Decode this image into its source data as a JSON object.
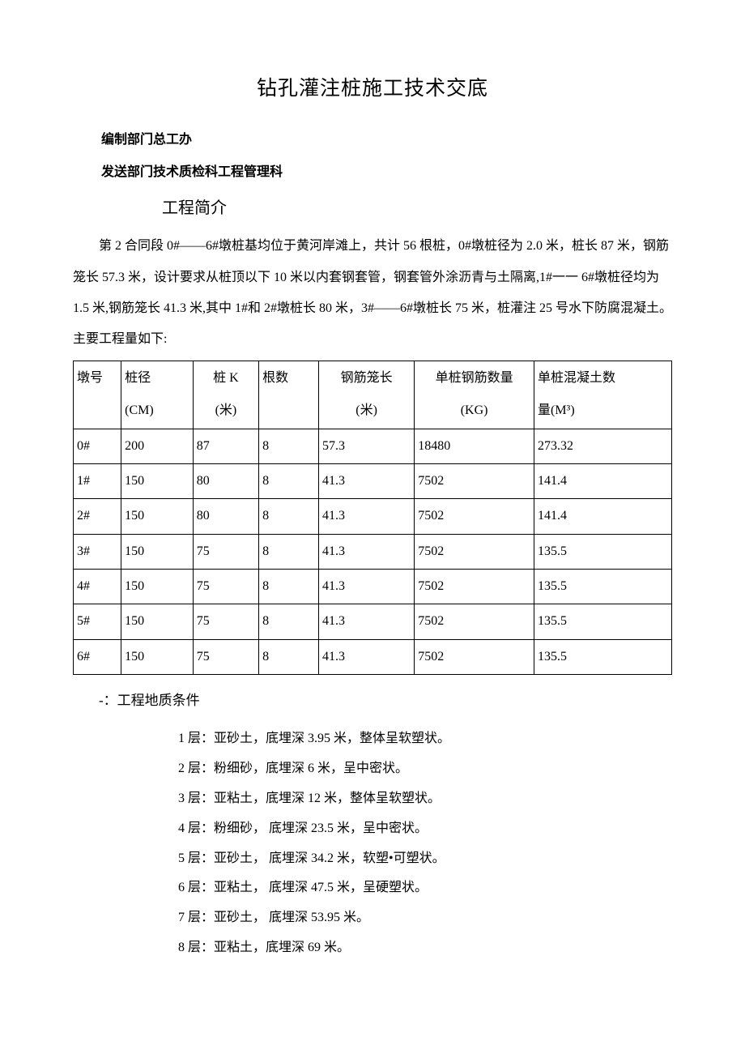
{
  "title": "钻孔灌注桩施工技术交底",
  "dept1": "编制部门总工办",
  "dept2": "发送部门技术质检科工程管理科",
  "intro_heading": "工程简介",
  "paragraph": "第 2 合同段 0#——6#墩桩基均位于黄河岸滩上，共计 56 根桩，0#墩桩径为 2.0 米，桩长 87 米，钢筋笼长 57.3 米，设计要求从桩顶以下 10 米以内套钢套管，钢套管外涂沥青与土隔离,1#一一 6#墩桩径均为 1.5 米,钢筋笼长 41.3 米,其中 1#和 2#墩桩长 80 米，3#——6#墩桩长 75 米，桩灌注 25 号水下防腐混凝土。主要工程量如下:",
  "table": {
    "columns": [
      {
        "h1": "墩号",
        "h2": ""
      },
      {
        "h1": "桩径",
        "h2": "(CM)"
      },
      {
        "h1": "桩 K",
        "h2": "(米)"
      },
      {
        "h1": "根数",
        "h2": ""
      },
      {
        "h1": "钢筋笼长",
        "h2": "(米)"
      },
      {
        "h1": "单桩钢筋数量",
        "h2": "(KG)"
      },
      {
        "h1": "单桩混凝土数",
        "h2": "量(M³)"
      }
    ],
    "rows": [
      [
        "0#",
        "200",
        "87",
        "8",
        "57.3",
        "18480",
        "273.32"
      ],
      [
        "1#",
        "150",
        "80",
        "8",
        "41.3",
        "7502",
        "141.4"
      ],
      [
        "2#",
        "150",
        "80",
        "8",
        "41.3",
        "7502",
        "141.4"
      ],
      [
        "3#",
        "150",
        "75",
        "8",
        "41.3",
        "7502",
        "135.5"
      ],
      [
        "4#",
        "150",
        "75",
        "8",
        "41.3",
        "7502",
        "135.5"
      ],
      [
        "5#",
        "150",
        "75",
        "8",
        "41.3",
        "7502",
        "135.5"
      ],
      [
        "6#",
        "150",
        "75",
        "8",
        "41.3",
        "7502",
        "135.5"
      ]
    ],
    "col_widths": [
      "8%",
      "12%",
      "11%",
      "10%",
      "16%",
      "20%",
      "23%"
    ],
    "header_align": [
      "left",
      "left",
      "center",
      "left",
      "center",
      "center",
      "left"
    ]
  },
  "subsection": "-：工程地质条件",
  "layers": [
    "1 层：亚砂土，底埋深 3.95 米，整体呈软塑状。",
    "2 层：粉细砂，底埋深 6 米，呈中密状。",
    "3 层：亚粘土，底埋深 12 米，整体呈软塑状。",
    "4 层：粉细砂， 底埋深 23.5 米，呈中密状。",
    "5 层：亚砂土， 底埋深 34.2 米，软塑•可塑状。",
    "6 层：亚粘土， 底埋深 47.5 米，呈硬塑状。",
    "7 层：亚砂土， 底埋深 53.95 米。",
    "8 层：亚粘土，底埋深 69 米。"
  ]
}
